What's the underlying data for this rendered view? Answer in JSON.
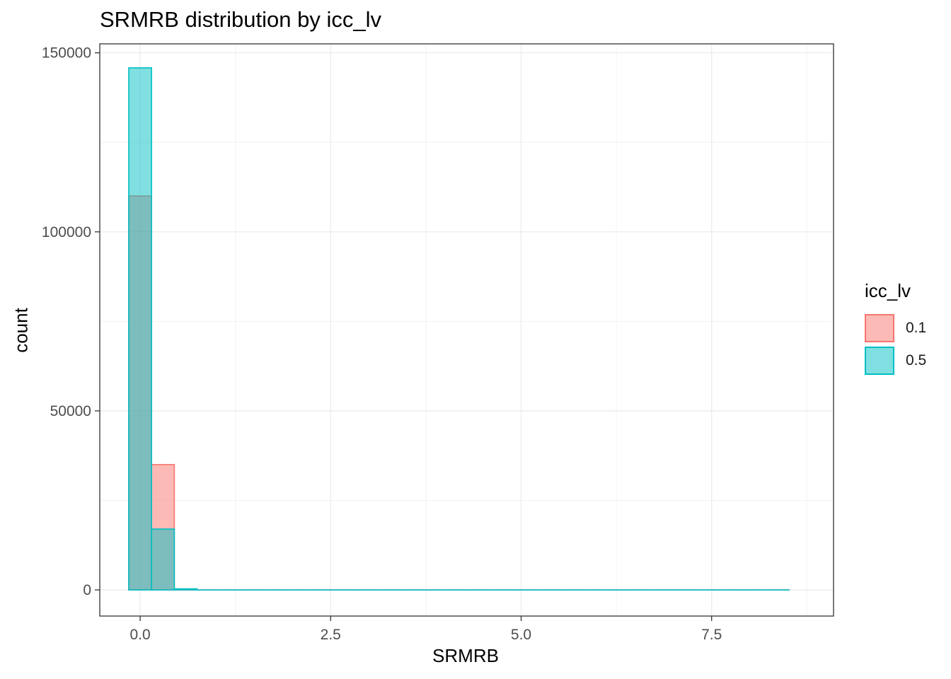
{
  "chart_data": {
    "type": "bar",
    "title": "SRMRB distribution by icc_lv",
    "xlabel": "SRMRB",
    "ylabel": "count",
    "xlim": [
      -0.53,
      9.1
    ],
    "ylim": [
      -7300,
      152500
    ],
    "x_ticks": [
      0.0,
      2.5,
      5.0,
      7.5
    ],
    "x_tick_labels": [
      "0.0",
      "2.5",
      "5.0",
      "7.5"
    ],
    "y_ticks": [
      0,
      50000,
      100000,
      150000
    ],
    "y_tick_labels": [
      "0",
      "50000",
      "100000",
      "150000"
    ],
    "grid": true,
    "legend": {
      "title": "icc_lv",
      "position": "right"
    },
    "bin_width": 0.2991,
    "bin_centers": [
      0.0,
      0.2991,
      0.5982,
      0.8973,
      1.1964,
      1.4955,
      1.7946,
      2.0937,
      2.3928,
      2.6919,
      2.991,
      3.2901,
      3.5892,
      3.8883,
      4.1874,
      4.4865,
      4.7856,
      5.0847,
      5.3838,
      5.6829,
      5.982,
      6.2811,
      6.5802,
      6.8793,
      7.1784,
      7.4775,
      7.7766,
      8.0757,
      8.3748
    ],
    "series": [
      {
        "name": "0.1",
        "fill": "#F8766D",
        "outline": "#F8766D",
        "values": [
          110000,
          35000,
          200,
          0,
          0,
          0,
          0,
          0,
          0,
          0,
          0,
          0,
          0,
          0,
          0,
          0,
          0,
          0,
          0,
          0,
          0,
          0,
          0,
          0,
          0,
          0,
          0,
          0,
          0
        ]
      },
      {
        "name": "0.5",
        "fill": "#00BFC4",
        "outline": "#00BFC4",
        "values": [
          145800,
          17000,
          300,
          0,
          0,
          0,
          0,
          0,
          0,
          0,
          0,
          0,
          0,
          0,
          0,
          0,
          0,
          0,
          0,
          0,
          0,
          0,
          0,
          0,
          0,
          0,
          0,
          0,
          0
        ]
      }
    ]
  }
}
